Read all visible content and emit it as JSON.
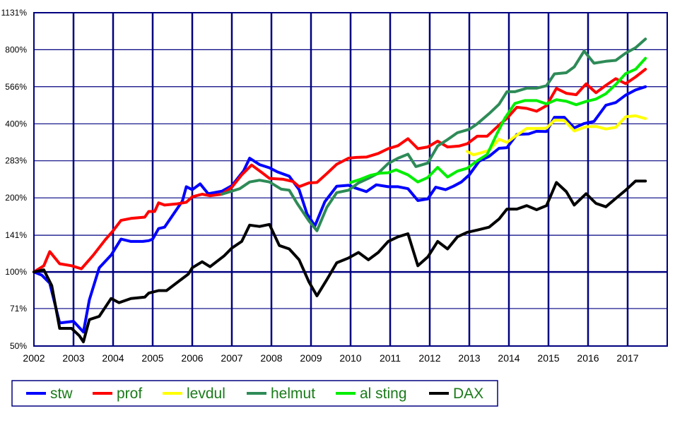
{
  "chart_data": {
    "type": "line",
    "title": "",
    "xlabel": "",
    "ylabel": "",
    "y_scale": "log",
    "ylim": [
      50,
      1131
    ],
    "xlim": [
      2002,
      2018
    ],
    "y_ticks": [
      {
        "value": 50,
        "label": "50%"
      },
      {
        "value": 71,
        "label": "71%"
      },
      {
        "value": 100,
        "label": "100%"
      },
      {
        "value": 141,
        "label": "141%"
      },
      {
        "value": 200,
        "label": "200%"
      },
      {
        "value": 283,
        "label": "283%"
      },
      {
        "value": 400,
        "label": "400%"
      },
      {
        "value": 566,
        "label": "566%"
      },
      {
        "value": 800,
        "label": "800%"
      },
      {
        "value": 1131,
        "label": "1131%"
      }
    ],
    "x_ticks": [
      "2002",
      "2003",
      "2004",
      "2005",
      "2006",
      "2007",
      "2008",
      "2009",
      "2010",
      "2011",
      "2012",
      "2013",
      "2014",
      "2015",
      "2016",
      "2017"
    ],
    "grid": true,
    "legend_position": "bottom-left",
    "series": [
      {
        "name": "stw",
        "color": "#0000ff",
        "points": [
          [
            2002.0,
            100
          ],
          [
            2002.2,
            97
          ],
          [
            2002.4,
            90
          ],
          [
            2002.65,
            62
          ],
          [
            2003.0,
            63
          ],
          [
            2003.25,
            57
          ],
          [
            2003.4,
            77
          ],
          [
            2003.65,
            104
          ],
          [
            2003.95,
            117
          ],
          [
            2004.2,
            136
          ],
          [
            2004.45,
            133
          ],
          [
            2004.75,
            133
          ],
          [
            2004.9,
            134
          ],
          [
            2005.0,
            136
          ],
          [
            2005.15,
            150
          ],
          [
            2005.3,
            152
          ],
          [
            2005.75,
            194
          ],
          [
            2005.85,
            222
          ],
          [
            2006.0,
            216
          ],
          [
            2006.2,
            228
          ],
          [
            2006.4,
            208
          ],
          [
            2006.75,
            213
          ],
          [
            2007.0,
            224
          ],
          [
            2007.3,
            258
          ],
          [
            2007.45,
            290
          ],
          [
            2007.7,
            273
          ],
          [
            2007.95,
            265
          ],
          [
            2008.15,
            255
          ],
          [
            2008.45,
            245
          ],
          [
            2008.7,
            216
          ],
          [
            2008.9,
            172
          ],
          [
            2009.1,
            154
          ],
          [
            2009.35,
            193
          ],
          [
            2009.65,
            223
          ],
          [
            2009.95,
            225
          ],
          [
            2010.1,
            220
          ],
          [
            2010.4,
            212
          ],
          [
            2010.65,
            226
          ],
          [
            2010.95,
            222
          ],
          [
            2011.2,
            222
          ],
          [
            2011.45,
            218
          ],
          [
            2011.7,
            195
          ],
          [
            2011.95,
            198
          ],
          [
            2012.15,
            221
          ],
          [
            2012.4,
            216
          ],
          [
            2012.6,
            223
          ],
          [
            2012.8,
            232
          ],
          [
            2013.0,
            248
          ],
          [
            2013.25,
            282
          ],
          [
            2013.5,
            295
          ],
          [
            2013.75,
            318
          ],
          [
            2013.95,
            320
          ],
          [
            2014.2,
            362
          ],
          [
            2014.5,
            364
          ],
          [
            2014.7,
            373
          ],
          [
            2014.95,
            372
          ],
          [
            2015.15,
            425
          ],
          [
            2015.4,
            425
          ],
          [
            2015.65,
            385
          ],
          [
            2015.9,
            401
          ],
          [
            2016.15,
            409
          ],
          [
            2016.45,
            476
          ],
          [
            2016.7,
            488
          ],
          [
            2016.95,
            523
          ],
          [
            2017.2,
            549
          ],
          [
            2017.45,
            566
          ]
        ]
      },
      {
        "name": "prof",
        "color": "#ff0000",
        "points": [
          [
            2002.0,
            100
          ],
          [
            2002.25,
            106
          ],
          [
            2002.4,
            121
          ],
          [
            2002.65,
            108
          ],
          [
            2002.95,
            106
          ],
          [
            2003.2,
            103
          ],
          [
            2003.5,
            117
          ],
          [
            2003.8,
            135
          ],
          [
            2004.0,
            147
          ],
          [
            2004.2,
            162
          ],
          [
            2004.45,
            165
          ],
          [
            2004.8,
            167
          ],
          [
            2004.9,
            176
          ],
          [
            2005.05,
            176
          ],
          [
            2005.15,
            191
          ],
          [
            2005.3,
            187
          ],
          [
            2005.6,
            189
          ],
          [
            2005.85,
            192
          ],
          [
            2006.0,
            202
          ],
          [
            2006.25,
            207
          ],
          [
            2006.45,
            204
          ],
          [
            2006.75,
            207
          ],
          [
            2007.0,
            221
          ],
          [
            2007.25,
            248
          ],
          [
            2007.5,
            272
          ],
          [
            2007.75,
            254
          ],
          [
            2007.95,
            240
          ],
          [
            2008.3,
            238
          ],
          [
            2008.55,
            233
          ],
          [
            2008.7,
            222
          ],
          [
            2008.95,
            230
          ],
          [
            2009.15,
            231
          ],
          [
            2009.4,
            251
          ],
          [
            2009.65,
            274
          ],
          [
            2009.95,
            290
          ],
          [
            2010.15,
            292
          ],
          [
            2010.4,
            293
          ],
          [
            2010.7,
            303
          ],
          [
            2010.95,
            317
          ],
          [
            2011.2,
            326
          ],
          [
            2011.45,
            348
          ],
          [
            2011.7,
            317
          ],
          [
            2011.95,
            322
          ],
          [
            2012.2,
            340
          ],
          [
            2012.45,
            322
          ],
          [
            2012.75,
            325
          ],
          [
            2012.95,
            332
          ],
          [
            2013.2,
            356
          ],
          [
            2013.45,
            356
          ],
          [
            2013.75,
            395
          ],
          [
            2013.95,
            421
          ],
          [
            2014.2,
            467
          ],
          [
            2014.45,
            462
          ],
          [
            2014.7,
            450
          ],
          [
            2014.95,
            474
          ],
          [
            2015.2,
            557
          ],
          [
            2015.45,
            532
          ],
          [
            2015.7,
            525
          ],
          [
            2015.95,
            581
          ],
          [
            2016.2,
            535
          ],
          [
            2016.45,
            573
          ],
          [
            2016.7,
            610
          ],
          [
            2016.95,
            582
          ],
          [
            2017.2,
            620
          ],
          [
            2017.45,
            666
          ]
        ]
      },
      {
        "name": "levdul",
        "color": "#ffff00",
        "points": [
          [
            2012.95,
            309
          ],
          [
            2013.1,
            299
          ],
          [
            2013.3,
            305
          ],
          [
            2013.5,
            312
          ],
          [
            2013.75,
            346
          ],
          [
            2013.95,
            336
          ],
          [
            2014.15,
            355
          ],
          [
            2014.45,
            383
          ],
          [
            2014.7,
            383
          ],
          [
            2014.95,
            384
          ],
          [
            2015.15,
            414
          ],
          [
            2015.4,
            413
          ],
          [
            2015.65,
            374
          ],
          [
            2015.95,
            389
          ],
          [
            2016.2,
            390
          ],
          [
            2016.45,
            381
          ],
          [
            2016.7,
            387
          ],
          [
            2016.95,
            427
          ],
          [
            2017.2,
            431
          ],
          [
            2017.45,
            420
          ]
        ]
      },
      {
        "name": "helmut",
        "color": "#2e8b57",
        "points": [
          [
            2006.75,
            207
          ],
          [
            2007.2,
            218
          ],
          [
            2007.45,
            232
          ],
          [
            2007.7,
            236
          ],
          [
            2007.95,
            232
          ],
          [
            2008.25,
            217
          ],
          [
            2008.45,
            215
          ],
          [
            2008.65,
            190
          ],
          [
            2008.95,
            161
          ],
          [
            2009.15,
            147
          ],
          [
            2009.4,
            183
          ],
          [
            2009.65,
            210
          ],
          [
            2009.95,
            215
          ],
          [
            2010.2,
            230
          ],
          [
            2010.45,
            240
          ],
          [
            2010.7,
            252
          ],
          [
            2010.95,
            276
          ],
          [
            2011.2,
            290
          ],
          [
            2011.45,
            301
          ],
          [
            2011.65,
            268
          ],
          [
            2011.95,
            277
          ],
          [
            2012.2,
            325
          ],
          [
            2012.45,
            345
          ],
          [
            2012.7,
            368
          ],
          [
            2013.0,
            380
          ],
          [
            2013.2,
            400
          ],
          [
            2013.5,
            440
          ],
          [
            2013.75,
            480
          ],
          [
            2013.95,
            540
          ],
          [
            2014.15,
            540
          ],
          [
            2014.45,
            558
          ],
          [
            2014.7,
            558
          ],
          [
            2014.95,
            571
          ],
          [
            2015.15,
            638
          ],
          [
            2015.45,
            645
          ],
          [
            2015.65,
            681
          ],
          [
            2015.9,
            790
          ],
          [
            2016.15,
            705
          ],
          [
            2016.45,
            718
          ],
          [
            2016.7,
            724
          ],
          [
            2016.95,
            775
          ],
          [
            2017.2,
            815
          ],
          [
            2017.45,
            884
          ]
        ]
      },
      {
        "name": "al sting",
        "color": "#00ee00",
        "points": [
          [
            2010.0,
            231
          ],
          [
            2010.25,
            238
          ],
          [
            2010.5,
            247
          ],
          [
            2010.75,
            252
          ],
          [
            2010.95,
            253
          ],
          [
            2011.15,
            260
          ],
          [
            2011.45,
            248
          ],
          [
            2011.7,
            232
          ],
          [
            2011.95,
            242
          ],
          [
            2012.2,
            266
          ],
          [
            2012.45,
            243
          ],
          [
            2012.7,
            257
          ],
          [
            2012.95,
            264
          ],
          [
            2013.2,
            283
          ],
          [
            2013.45,
            300
          ],
          [
            2013.7,
            365
          ],
          [
            2013.9,
            422
          ],
          [
            2014.15,
            484
          ],
          [
            2014.4,
            497
          ],
          [
            2014.7,
            497
          ],
          [
            2014.95,
            482
          ],
          [
            2015.2,
            501
          ],
          [
            2015.45,
            494
          ],
          [
            2015.7,
            478
          ],
          [
            2015.95,
            493
          ],
          [
            2016.2,
            504
          ],
          [
            2016.45,
            530
          ],
          [
            2016.7,
            578
          ],
          [
            2016.95,
            640
          ],
          [
            2017.2,
            666
          ],
          [
            2017.45,
            738
          ]
        ]
      },
      {
        "name": "DAX",
        "color": "#000000",
        "points": [
          [
            2002.0,
            100
          ],
          [
            2002.25,
            102
          ],
          [
            2002.45,
            88
          ],
          [
            2002.65,
            59
          ],
          [
            2002.95,
            59
          ],
          [
            2003.15,
            55
          ],
          [
            2003.25,
            52
          ],
          [
            2003.4,
            64
          ],
          [
            2003.65,
            66
          ],
          [
            2003.95,
            78
          ],
          [
            2004.15,
            75
          ],
          [
            2004.45,
            78
          ],
          [
            2004.8,
            79
          ],
          [
            2004.9,
            82
          ],
          [
            2005.15,
            84
          ],
          [
            2005.35,
            84
          ],
          [
            2005.75,
            94
          ],
          [
            2005.9,
            98
          ],
          [
            2006.0,
            104
          ],
          [
            2006.25,
            110
          ],
          [
            2006.45,
            105
          ],
          [
            2006.8,
            116
          ],
          [
            2007.0,
            125
          ],
          [
            2007.25,
            133
          ],
          [
            2007.45,
            155
          ],
          [
            2007.7,
            153
          ],
          [
            2007.95,
            156
          ],
          [
            2008.2,
            128
          ],
          [
            2008.45,
            124
          ],
          [
            2008.7,
            112
          ],
          [
            2008.95,
            91
          ],
          [
            2009.15,
            80
          ],
          [
            2009.4,
            93
          ],
          [
            2009.65,
            109
          ],
          [
            2009.95,
            114
          ],
          [
            2010.2,
            120
          ],
          [
            2010.45,
            112
          ],
          [
            2010.7,
            120
          ],
          [
            2010.95,
            133
          ],
          [
            2011.2,
            139
          ],
          [
            2011.45,
            143
          ],
          [
            2011.7,
            106
          ],
          [
            2011.95,
            115
          ],
          [
            2012.2,
            133
          ],
          [
            2012.45,
            124
          ],
          [
            2012.7,
            139
          ],
          [
            2012.95,
            145
          ],
          [
            2013.2,
            148
          ],
          [
            2013.5,
            152
          ],
          [
            2013.75,
            164
          ],
          [
            2013.95,
            180
          ],
          [
            2014.2,
            180
          ],
          [
            2014.45,
            186
          ],
          [
            2014.7,
            179
          ],
          [
            2014.95,
            186
          ],
          [
            2015.2,
            231
          ],
          [
            2015.45,
            212
          ],
          [
            2015.65,
            187
          ],
          [
            2015.95,
            208
          ],
          [
            2016.2,
            190
          ],
          [
            2016.45,
            184
          ],
          [
            2016.7,
            199
          ],
          [
            2016.95,
            215
          ],
          [
            2017.2,
            234
          ],
          [
            2017.45,
            234
          ]
        ]
      }
    ]
  }
}
